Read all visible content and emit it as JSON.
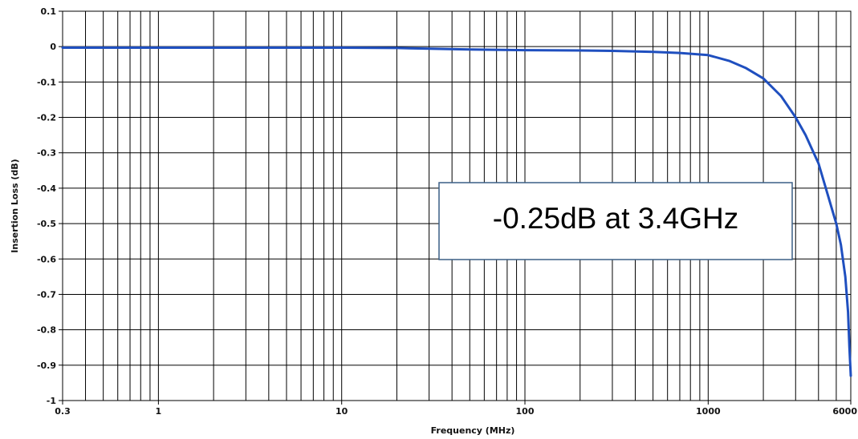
{
  "chart_data": {
    "type": "line",
    "title": "",
    "xlabel": "Frequency (MHz)",
    "ylabel": "Insertion Loss (dB)",
    "xscale": "log",
    "xlim": [
      0.3,
      6000
    ],
    "ylim": [
      -1,
      0.1
    ],
    "grid": true,
    "xticks": [
      {
        "value": 0.3,
        "label": "0.3"
      },
      {
        "value": 1,
        "label": "1"
      },
      {
        "value": 10,
        "label": "10"
      },
      {
        "value": 100,
        "label": "100"
      },
      {
        "value": 1000,
        "label": "1000"
      },
      {
        "value": 6000,
        "label": "6000"
      }
    ],
    "yticks": [
      {
        "value": 0.1,
        "label": "0.1"
      },
      {
        "value": 0,
        "label": "0"
      },
      {
        "value": -0.1,
        "label": "-0.1"
      },
      {
        "value": -0.2,
        "label": "-0.2"
      },
      {
        "value": -0.3,
        "label": "-0.3"
      },
      {
        "value": -0.4,
        "label": "-0.4"
      },
      {
        "value": -0.5,
        "label": "-0.5"
      },
      {
        "value": -0.6,
        "label": "-0.6"
      },
      {
        "value": -0.7,
        "label": "-0.7"
      },
      {
        "value": -0.8,
        "label": "-0.8"
      },
      {
        "value": -0.9,
        "label": "-0.9"
      },
      {
        "value": -1,
        "label": "-1"
      }
    ],
    "series": [
      {
        "color": "#1f4fbf",
        "x": [
          0.3,
          1,
          3,
          10,
          20,
          30,
          50,
          100,
          200,
          300,
          500,
          700,
          1000,
          1300,
          1600,
          2000,
          2500,
          3000,
          3400,
          4000,
          4500,
          5000,
          5300,
          5600,
          5800,
          5900,
          6000
        ],
        "y": [
          -0.003,
          -0.003,
          -0.003,
          -0.003,
          -0.004,
          -0.006,
          -0.008,
          -0.01,
          -0.011,
          -0.012,
          -0.015,
          -0.018,
          -0.024,
          -0.04,
          -0.06,
          -0.09,
          -0.14,
          -0.2,
          -0.25,
          -0.33,
          -0.42,
          -0.5,
          -0.56,
          -0.65,
          -0.75,
          -0.85,
          -0.93
        ]
      }
    ],
    "annotations": [
      {
        "text": "-0.25dB at 3.4GHz",
        "x": 1000,
        "y": -0.45
      }
    ]
  }
}
